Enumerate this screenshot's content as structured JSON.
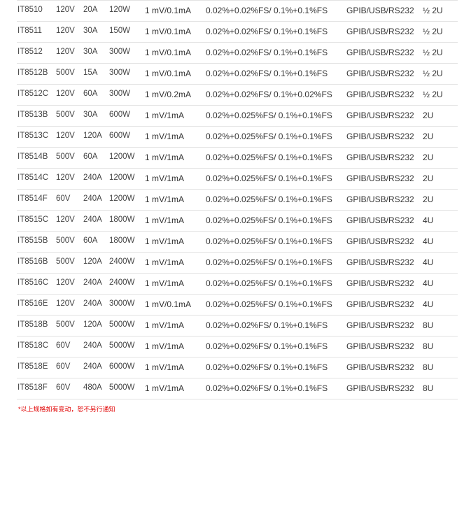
{
  "table": {
    "rows": [
      [
        "IT8510",
        "120V",
        "20A",
        "120W",
        "1 mV/0.1mA",
        "0.02%+0.02%FS/ 0.1%+0.1%FS",
        "GPIB/USB/RS232",
        "½ 2U"
      ],
      [
        "IT8511",
        "120V",
        "30A",
        "150W",
        "1 mV/0.1mA",
        "0.02%+0.02%FS/ 0.1%+0.1%FS",
        "GPIB/USB/RS232",
        "½ 2U"
      ],
      [
        "IT8512",
        "120V",
        "30A",
        "300W",
        "1 mV/0.1mA",
        "0.02%+0.02%FS/ 0.1%+0.1%FS",
        "GPIB/USB/RS232",
        "½ 2U"
      ],
      [
        "IT8512B",
        "500V",
        "15A",
        "300W",
        "1 mV/0.1mA",
        "0.02%+0.02%FS/ 0.1%+0.1%FS",
        "GPIB/USB/RS232",
        "½ 2U"
      ],
      [
        "IT8512C",
        "120V",
        "60A",
        "300W",
        "1 mV/0.2mA",
        "0.02%+0.02%FS/ 0.1%+0.02%FS",
        "GPIB/USB/RS232",
        "½ 2U"
      ],
      [
        "IT8513B",
        "500V",
        "30A",
        "600W",
        "1 mV/1mA",
        "0.02%+0.025%FS/ 0.1%+0.1%FS",
        "GPIB/USB/RS232",
        "2U"
      ],
      [
        "IT8513C",
        "120V",
        "120A",
        "600W",
        "1 mV/1mA",
        "0.02%+0.025%FS/ 0.1%+0.1%FS",
        "GPIB/USB/RS232",
        "2U"
      ],
      [
        "IT8514B",
        "500V",
        "60A",
        "1200W",
        "1 mV/1mA",
        "0.02%+0.025%FS/ 0.1%+0.1%FS",
        "GPIB/USB/RS232",
        "2U"
      ],
      [
        "IT8514C",
        "120V",
        "240A",
        "1200W",
        "1 mV/1mA",
        "0.02%+0.025%FS/ 0.1%+0.1%FS",
        "GPIB/USB/RS232",
        "2U"
      ],
      [
        "IT8514F",
        "60V",
        "240A",
        "1200W",
        "1 mV/1mA",
        "0.02%+0.025%FS/ 0.1%+0.1%FS",
        "GPIB/USB/RS232",
        "2U"
      ],
      [
        "IT8515C",
        "120V",
        "240A",
        "1800W",
        "1 mV/1mA",
        "0.02%+0.025%FS/ 0.1%+0.1%FS",
        "GPIB/USB/RS232",
        "4U"
      ],
      [
        "IT8515B",
        "500V",
        "60A",
        "1800W",
        "1 mV/1mA",
        "0.02%+0.025%FS/ 0.1%+0.1%FS",
        "GPIB/USB/RS232",
        "4U"
      ],
      [
        "IT8516B",
        "500V",
        "120A",
        "2400W",
        "1 mV/1mA",
        "0.02%+0.025%FS/ 0.1%+0.1%FS",
        "GPIB/USB/RS232",
        "4U"
      ],
      [
        "IT8516C",
        "120V",
        "240A",
        "2400W",
        "1 mV/1mA",
        "0.02%+0.025%FS/ 0.1%+0.1%FS",
        "GPIB/USB/RS232",
        "4U"
      ],
      [
        "IT8516E",
        "120V",
        "240A",
        "3000W",
        "1 mV/0.1mA",
        "0.02%+0.025%FS/ 0.1%+0.1%FS",
        "GPIB/USB/RS232",
        "4U"
      ],
      [
        "IT8518B",
        "500V",
        "120A",
        "5000W",
        "1 mV/1mA",
        "0.02%+0.02%FS/ 0.1%+0.1%FS",
        "GPIB/USB/RS232",
        "8U"
      ],
      [
        "IT8518C",
        "60V",
        "240A",
        "5000W",
        "1 mV/1mA",
        "0.02%+0.02%FS/ 0.1%+0.1%FS",
        "GPIB/USB/RS232",
        "8U"
      ],
      [
        "IT8518E",
        "60V",
        "240A",
        "6000W",
        "1 mV/1mA",
        "0.02%+0.02%FS/ 0.1%+0.1%FS",
        "GPIB/USB/RS232",
        "8U"
      ],
      [
        "IT8518F",
        "60V",
        "480A",
        "5000W",
        "1 mV/1mA",
        "0.02%+0.02%FS/ 0.1%+0.1%FS",
        "GPIB/USB/RS232",
        "8U"
      ]
    ]
  },
  "note": "*以上规格如有变动，恕不另行通知",
  "colors": {
    "note": "#e00000",
    "divider": "#e2e2e2"
  }
}
